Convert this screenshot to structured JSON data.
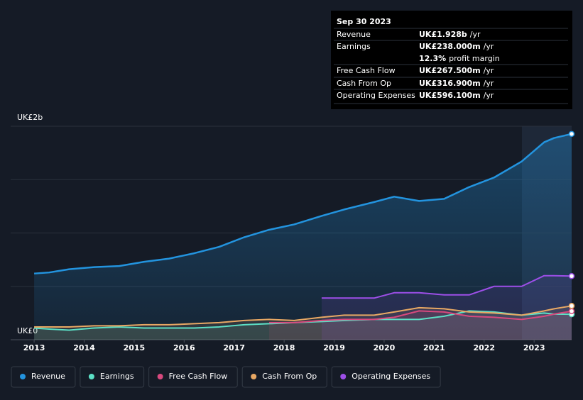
{
  "chart_data": {
    "type": "line",
    "x": [
      2013,
      2013.3,
      2013.7,
      2014.2,
      2014.7,
      2015.2,
      2015.7,
      2016.2,
      2016.7,
      2017.2,
      2017.7,
      2018.2,
      2018.75,
      2019.2,
      2019.8,
      2020.2,
      2020.7,
      2021.2,
      2021.7,
      2022.2,
      2022.75,
      2023.2,
      2023.4,
      2023.75
    ],
    "series": [
      {
        "name": "Revenue",
        "color": "#2394df",
        "values": [
          0.62,
          0.63,
          0.66,
          0.68,
          0.69,
          0.73,
          0.76,
          0.81,
          0.87,
          0.96,
          1.03,
          1.08,
          1.16,
          1.22,
          1.29,
          1.34,
          1.3,
          1.32,
          1.43,
          1.52,
          1.67,
          1.85,
          1.89,
          1.928
        ]
      },
      {
        "name": "Earnings",
        "color": "#5ce0c6",
        "values": [
          0.11,
          0.1,
          0.09,
          0.11,
          0.12,
          0.11,
          0.11,
          0.11,
          0.12,
          0.14,
          0.15,
          0.16,
          0.17,
          0.18,
          0.19,
          0.19,
          0.19,
          0.22,
          0.27,
          0.26,
          0.23,
          0.25,
          0.24,
          0.238
        ]
      },
      {
        "name": "Free Cash Flow",
        "color": "#d8497e",
        "values": [
          null,
          null,
          null,
          null,
          null,
          null,
          null,
          null,
          null,
          null,
          0.16,
          0.16,
          0.18,
          0.19,
          0.19,
          0.21,
          0.27,
          0.26,
          0.22,
          0.21,
          0.19,
          0.22,
          0.24,
          0.2675
        ]
      },
      {
        "name": "Cash From Op",
        "color": "#e8a864",
        "values": [
          0.12,
          0.12,
          0.12,
          0.13,
          0.13,
          0.14,
          0.14,
          0.15,
          0.16,
          0.18,
          0.19,
          0.18,
          0.21,
          0.23,
          0.23,
          0.26,
          0.3,
          0.29,
          0.26,
          0.25,
          0.23,
          0.27,
          0.29,
          0.3169
        ]
      },
      {
        "name": "Operating Expenses",
        "color": "#9d4fe8",
        "values": [
          null,
          null,
          null,
          null,
          null,
          null,
          null,
          null,
          null,
          null,
          null,
          null,
          0.39,
          0.39,
          0.39,
          0.44,
          0.44,
          0.42,
          0.42,
          0.5,
          0.5,
          0.6,
          0.6,
          0.5961
        ]
      }
    ],
    "xlim": [
      2012.53,
      2023.75
    ],
    "xticks": [
      2013,
      2014,
      2015,
      2016,
      2017,
      2018,
      2019,
      2020,
      2021,
      2022,
      2023
    ],
    "ylim": [
      0,
      2
    ],
    "yticks": [
      {
        "value": 0,
        "label": "UK£0"
      },
      {
        "value": 0.5,
        "label": null
      },
      {
        "value": 1,
        "label": null
      },
      {
        "value": 1.5,
        "label": null
      },
      {
        "value": 2,
        "label": "UK£2b"
      }
    ],
    "grid": true
  },
  "tooltip": {
    "date": "Sep 30 2023",
    "rows": [
      {
        "label": "Revenue",
        "value": "UK£1.928b",
        "unit": "/yr",
        "color": "#2394df"
      },
      {
        "label": "Earnings",
        "value": "UK£238.000m",
        "unit": "/yr",
        "color": "#5ce0c6"
      },
      {
        "label": null,
        "value": "12.3%",
        "unit": "profit margin",
        "color": "#ffffff"
      },
      {
        "label": "Free Cash Flow",
        "value": "UK£267.500m",
        "unit": "/yr",
        "color": "#d8497e"
      },
      {
        "label": "Cash From Op",
        "value": "UK£316.900m",
        "unit": "/yr",
        "color": "#e8a864"
      },
      {
        "label": "Operating Expenses",
        "value": "UK£596.100m",
        "unit": "/yr",
        "color": "#9d4fe8"
      }
    ]
  }
}
